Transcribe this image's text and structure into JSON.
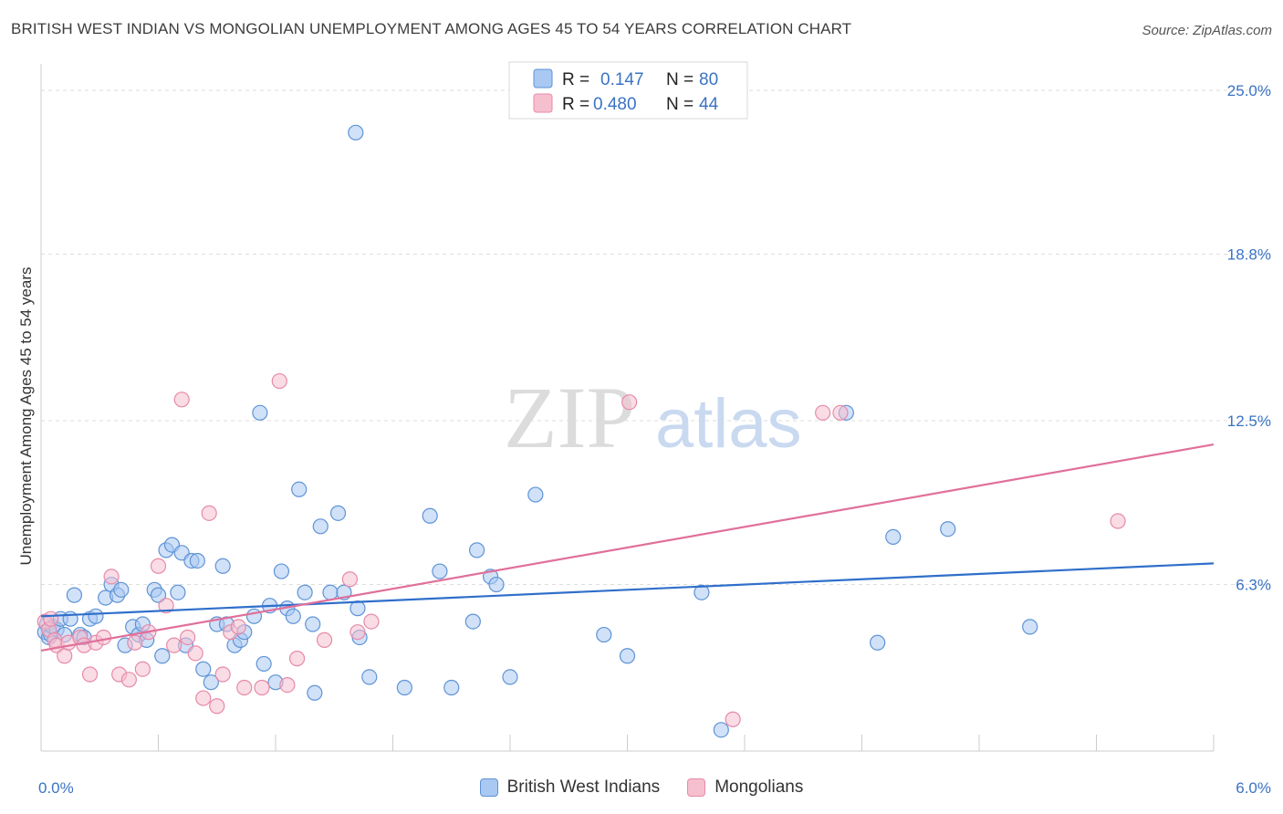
{
  "header": {
    "title": "BRITISH WEST INDIAN VS MONGOLIAN UNEMPLOYMENT AMONG AGES 45 TO 54 YEARS CORRELATION CHART",
    "source": "Source: ZipAtlas.com"
  },
  "watermark": {
    "zip": "ZIP",
    "atlas": "atlas"
  },
  "colors": {
    "blue_fill": "#a9c8f2",
    "blue_stroke": "#5e93d6",
    "blue_line": "#2f6fca",
    "pink_fill": "#f6bfd0",
    "pink_stroke": "#e68aa8",
    "pink_line": "#e0709a",
    "axis_label": "#3a73c4",
    "grid": "#dddddd"
  },
  "legend": {
    "r_label": "R =",
    "n_label": "N =",
    "series": [
      {
        "r": "0.147",
        "n": "80"
      },
      {
        "r": "0.480",
        "n": "44"
      }
    ]
  },
  "chart_data": {
    "type": "scatter",
    "title": "BRITISH WEST INDIAN VS MONGOLIAN UNEMPLOYMENT AMONG AGES 45 TO 54 YEARS CORRELATION CHART",
    "xlabel": "",
    "ylabel": "Unemployment Among Ages 45 to 54 years",
    "xlim": [
      0,
      6
    ],
    "ylim": [
      0,
      26
    ],
    "x_tick_labels": [
      "0.0%",
      "6.0%"
    ],
    "y_ticks": [
      6.3,
      12.5,
      18.8,
      25.0
    ],
    "y_tick_labels": [
      "6.3%",
      "12.5%",
      "18.8%",
      "25.0%"
    ],
    "grid": true,
    "legend_position": "top-center",
    "series": [
      {
        "name": "British West Indians",
        "r": 0.147,
        "n": 80,
        "trend": {
          "x": [
            0,
            6
          ],
          "y": [
            5.1,
            7.1
          ]
        },
        "points": [
          [
            0.02,
            4.5
          ],
          [
            0.03,
            4.8
          ],
          [
            0.04,
            4.3
          ],
          [
            0.05,
            4.4
          ],
          [
            0.06,
            4.7
          ],
          [
            0.08,
            4.6
          ],
          [
            0.1,
            5.0
          ],
          [
            0.12,
            4.4
          ],
          [
            0.15,
            5.0
          ],
          [
            0.17,
            5.9
          ],
          [
            0.2,
            4.4
          ],
          [
            0.22,
            4.3
          ],
          [
            0.25,
            5.0
          ],
          [
            0.28,
            5.1
          ],
          [
            0.33,
            5.8
          ],
          [
            0.36,
            6.3
          ],
          [
            0.39,
            5.9
          ],
          [
            0.41,
            6.1
          ],
          [
            0.43,
            4.0
          ],
          [
            0.47,
            4.7
          ],
          [
            0.5,
            4.4
          ],
          [
            0.52,
            4.8
          ],
          [
            0.54,
            4.2
          ],
          [
            0.58,
            6.1
          ],
          [
            0.6,
            5.9
          ],
          [
            0.62,
            3.6
          ],
          [
            0.64,
            7.6
          ],
          [
            0.67,
            7.8
          ],
          [
            0.7,
            6.0
          ],
          [
            0.72,
            7.5
          ],
          [
            0.74,
            4.0
          ],
          [
            0.77,
            7.2
          ],
          [
            0.8,
            7.2
          ],
          [
            0.83,
            3.1
          ],
          [
            0.87,
            2.6
          ],
          [
            0.9,
            4.8
          ],
          [
            0.93,
            7.0
          ],
          [
            0.95,
            4.8
          ],
          [
            0.99,
            4.0
          ],
          [
            1.02,
            4.2
          ],
          [
            1.04,
            4.5
          ],
          [
            1.09,
            5.1
          ],
          [
            1.12,
            12.8
          ],
          [
            1.14,
            3.3
          ],
          [
            1.17,
            5.5
          ],
          [
            1.2,
            2.6
          ],
          [
            1.23,
            6.8
          ],
          [
            1.26,
            5.4
          ],
          [
            1.29,
            5.1
          ],
          [
            1.32,
            9.9
          ],
          [
            1.35,
            6.0
          ],
          [
            1.39,
            4.8
          ],
          [
            1.4,
            2.2
          ],
          [
            1.43,
            8.5
          ],
          [
            1.48,
            6.0
          ],
          [
            1.52,
            9.0
          ],
          [
            1.55,
            6.0
          ],
          [
            1.61,
            23.4
          ],
          [
            1.63,
            4.3
          ],
          [
            1.62,
            5.4
          ],
          [
            1.68,
            2.8
          ],
          [
            1.86,
            2.4
          ],
          [
            1.99,
            8.9
          ],
          [
            2.04,
            6.8
          ],
          [
            2.1,
            2.4
          ],
          [
            2.21,
            4.9
          ],
          [
            2.23,
            7.6
          ],
          [
            2.3,
            6.6
          ],
          [
            2.33,
            6.3
          ],
          [
            2.4,
            2.8
          ],
          [
            2.53,
            9.7
          ],
          [
            2.88,
            4.4
          ],
          [
            3.0,
            3.6
          ],
          [
            3.38,
            6.0
          ],
          [
            3.48,
            0.8
          ],
          [
            4.12,
            12.8
          ],
          [
            4.28,
            4.1
          ],
          [
            4.36,
            8.1
          ],
          [
            4.64,
            8.4
          ],
          [
            5.06,
            4.7
          ]
        ]
      },
      {
        "name": "Mongolians",
        "r": 0.48,
        "n": 44,
        "trend": {
          "x": [
            0,
            6
          ],
          "y": [
            3.8,
            11.6
          ]
        },
        "points": [
          [
            0.02,
            4.9
          ],
          [
            0.04,
            4.6
          ],
          [
            0.05,
            5.0
          ],
          [
            0.07,
            4.2
          ],
          [
            0.08,
            4.0
          ],
          [
            0.12,
            3.6
          ],
          [
            0.14,
            4.1
          ],
          [
            0.2,
            4.3
          ],
          [
            0.22,
            4.0
          ],
          [
            0.25,
            2.9
          ],
          [
            0.28,
            4.1
          ],
          [
            0.32,
            4.3
          ],
          [
            0.36,
            6.6
          ],
          [
            0.4,
            2.9
          ],
          [
            0.45,
            2.7
          ],
          [
            0.48,
            4.1
          ],
          [
            0.52,
            3.1
          ],
          [
            0.55,
            4.5
          ],
          [
            0.6,
            7.0
          ],
          [
            0.64,
            5.5
          ],
          [
            0.68,
            4.0
          ],
          [
            0.72,
            13.3
          ],
          [
            0.75,
            4.3
          ],
          [
            0.79,
            3.7
          ],
          [
            0.83,
            2.0
          ],
          [
            0.86,
            9.0
          ],
          [
            0.9,
            1.7
          ],
          [
            0.93,
            2.9
          ],
          [
            0.97,
            4.5
          ],
          [
            1.01,
            4.7
          ],
          [
            1.04,
            2.4
          ],
          [
            1.13,
            2.4
          ],
          [
            1.22,
            14.0
          ],
          [
            1.26,
            2.5
          ],
          [
            1.31,
            3.5
          ],
          [
            1.45,
            4.2
          ],
          [
            1.58,
            6.5
          ],
          [
            1.62,
            4.5
          ],
          [
            1.69,
            4.9
          ],
          [
            3.01,
            13.2
          ],
          [
            3.54,
            1.2
          ],
          [
            4.0,
            12.8
          ],
          [
            4.09,
            12.8
          ],
          [
            5.51,
            8.7
          ]
        ]
      }
    ]
  }
}
